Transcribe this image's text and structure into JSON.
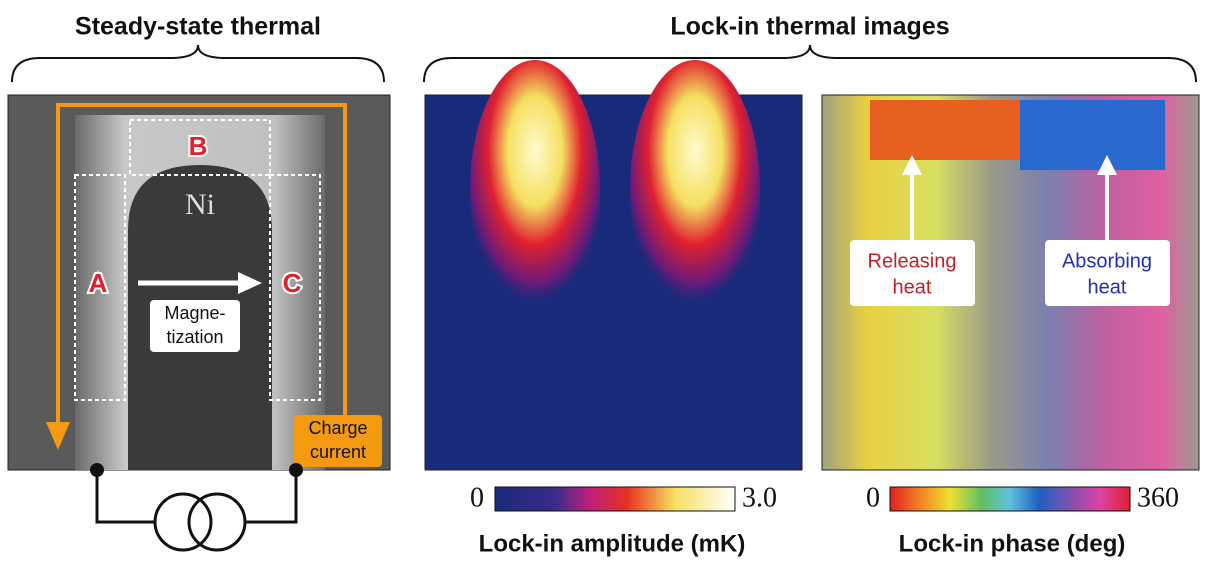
{
  "left_panel": {
    "title": "Steady-state thermal",
    "region_labels": [
      "A",
      "B",
      "C"
    ],
    "material": "Ni",
    "magnetization": [
      "Magne-",
      "tization"
    ],
    "current": [
      "Charge",
      "current"
    ]
  },
  "right_panel": {
    "title": "Lock-in thermal images",
    "amplitude": {
      "scale_min": "0",
      "scale_max": "3.0",
      "label": "Lock-in amplitude (mK)"
    },
    "phase": {
      "scale_min": "0",
      "scale_max": "360",
      "label": "Lock-in phase (deg)",
      "releasing": [
        "Releasing",
        "heat"
      ],
      "absorbing": [
        "Absorbing",
        "heat"
      ]
    }
  }
}
